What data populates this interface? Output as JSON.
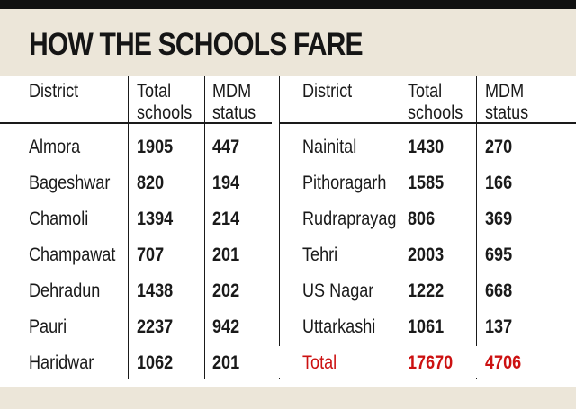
{
  "title": "HOW THE SCHOOLS FARE",
  "columns": {
    "district": "District",
    "total": "Total\nschools",
    "mdm": "MDM\nstatus"
  },
  "left_rows": [
    {
      "district": "Almora",
      "total": "1905",
      "mdm": "447"
    },
    {
      "district": "Bageshwar",
      "total": "820",
      "mdm": "194"
    },
    {
      "district": "Chamoli",
      "total": "1394",
      "mdm": "214"
    },
    {
      "district": "Champawat",
      "total": "707",
      "mdm": "201"
    },
    {
      "district": "Dehradun",
      "total": "1438",
      "mdm": "202"
    },
    {
      "district": "Pauri",
      "total": "2237",
      "mdm": "942"
    },
    {
      "district": "Haridwar",
      "total": "1062",
      "mdm": "201"
    }
  ],
  "right_rows": [
    {
      "district": "Nainital",
      "total": "1430",
      "mdm": "270"
    },
    {
      "district": "Pithoragarh",
      "total": "1585",
      "mdm": "166"
    },
    {
      "district": "Rudraprayag",
      "total": "806",
      "mdm": "369"
    },
    {
      "district": "Tehri",
      "total": "2003",
      "mdm": "695"
    },
    {
      "district": "US Nagar",
      "total": "1222",
      "mdm": "668"
    },
    {
      "district": "Uttarkashi",
      "total": "1061",
      "mdm": "137"
    }
  ],
  "total_row": {
    "district": "Total",
    "total": "17670",
    "mdm": "4706"
  },
  "colors": {
    "background": "#ece6d9",
    "table": "#ffffff",
    "total": "#cc1111",
    "text": "#1a1a1a"
  }
}
